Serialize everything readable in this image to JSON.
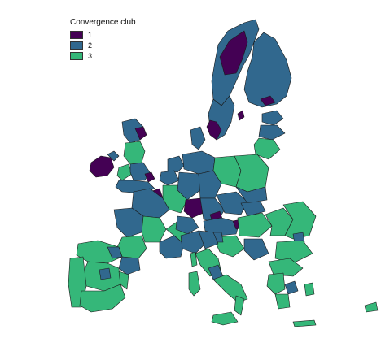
{
  "legend": {
    "title": "Convergence club",
    "items": [
      {
        "label": "1",
        "color": "#440154"
      },
      {
        "label": "2",
        "color": "#31688e"
      },
      {
        "label": "3",
        "color": "#35b779"
      }
    ]
  },
  "colors": {
    "club1": "#440154",
    "club2": "#31688e",
    "club3": "#35b779",
    "border": "#1a1a1a"
  }
}
